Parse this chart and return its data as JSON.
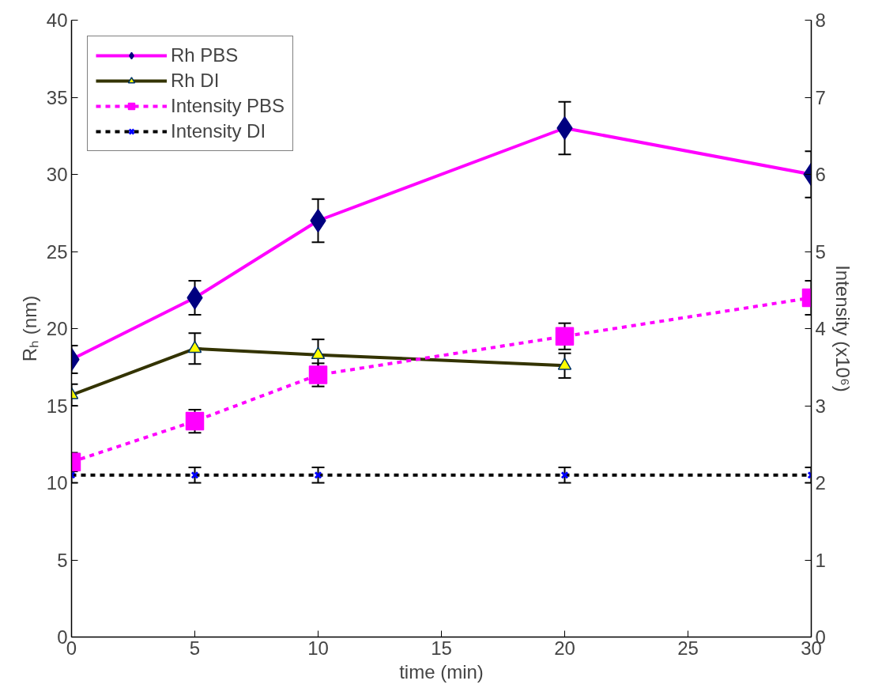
{
  "chart_data": {
    "type": "line",
    "xlabel": "time (min)",
    "ylabel": "Rₕ (nm)",
    "y2label": "Intensity (x10⁶)",
    "x": [
      0,
      5,
      10,
      20,
      30
    ],
    "xlim": [
      0,
      30
    ],
    "xticks": [
      0,
      5,
      10,
      15,
      20,
      25,
      30
    ],
    "ylim": [
      0,
      40
    ],
    "yticks": [
      0,
      5,
      10,
      15,
      20,
      25,
      30,
      35,
      40
    ],
    "y2lim": [
      0,
      8
    ],
    "y2ticks": [
      0,
      1,
      2,
      3,
      4,
      5,
      6,
      7,
      8
    ],
    "grid": false,
    "legend": "top left",
    "series": [
      {
        "name": "Rh PBS",
        "color": "#ff00ff",
        "colors": [
          "#000080",
          "#000080",
          "#000080",
          "#000080",
          "#000080"
        ],
        "marker": "diamond",
        "line_style": "solid",
        "values": [
          18,
          22,
          27,
          33,
          30
        ],
        "errors": [
          0.9,
          1.1,
          1.4,
          1.7,
          1.5
        ]
      },
      {
        "name": "Rh DI",
        "color": "#333300",
        "colors": [
          "#ffff00",
          "#ffff00",
          "#ffff00",
          "#ffff00"
        ],
        "marker": "triangle",
        "line_style": "solid",
        "x": [
          0,
          5,
          10,
          20
        ],
        "values": [
          15.7,
          18.7,
          18.3,
          17.6
        ],
        "errors": [
          0.7,
          1.0,
          1.0,
          0.8
        ]
      },
      {
        "name": "Intensity PBS",
        "color": "#ff00ff",
        "colors": [
          "#ff00ff",
          "#ff00ff",
          "#ff00ff",
          "#ff00ff",
          "#ff00ff"
        ],
        "marker": "square",
        "line_style": "dashed",
        "axis": "y2",
        "values": [
          2.27,
          2.8,
          3.4,
          3.9,
          4.4
        ],
        "errors": [
          0.12,
          0.15,
          0.15,
          0.17,
          0.22
        ]
      },
      {
        "name": "Intensity DI",
        "color": "#000000",
        "colors": [
          "#0000ff",
          "#0000ff",
          "#0000ff",
          "#0000ff",
          "#0000ff"
        ],
        "marker": "cross",
        "line_style": "dashed",
        "axis": "y2",
        "values": [
          2.1,
          2.1,
          2.1,
          2.1,
          2.1
        ],
        "errors": [
          0.1,
          0.1,
          0.1,
          0.1,
          0.1
        ]
      }
    ]
  }
}
